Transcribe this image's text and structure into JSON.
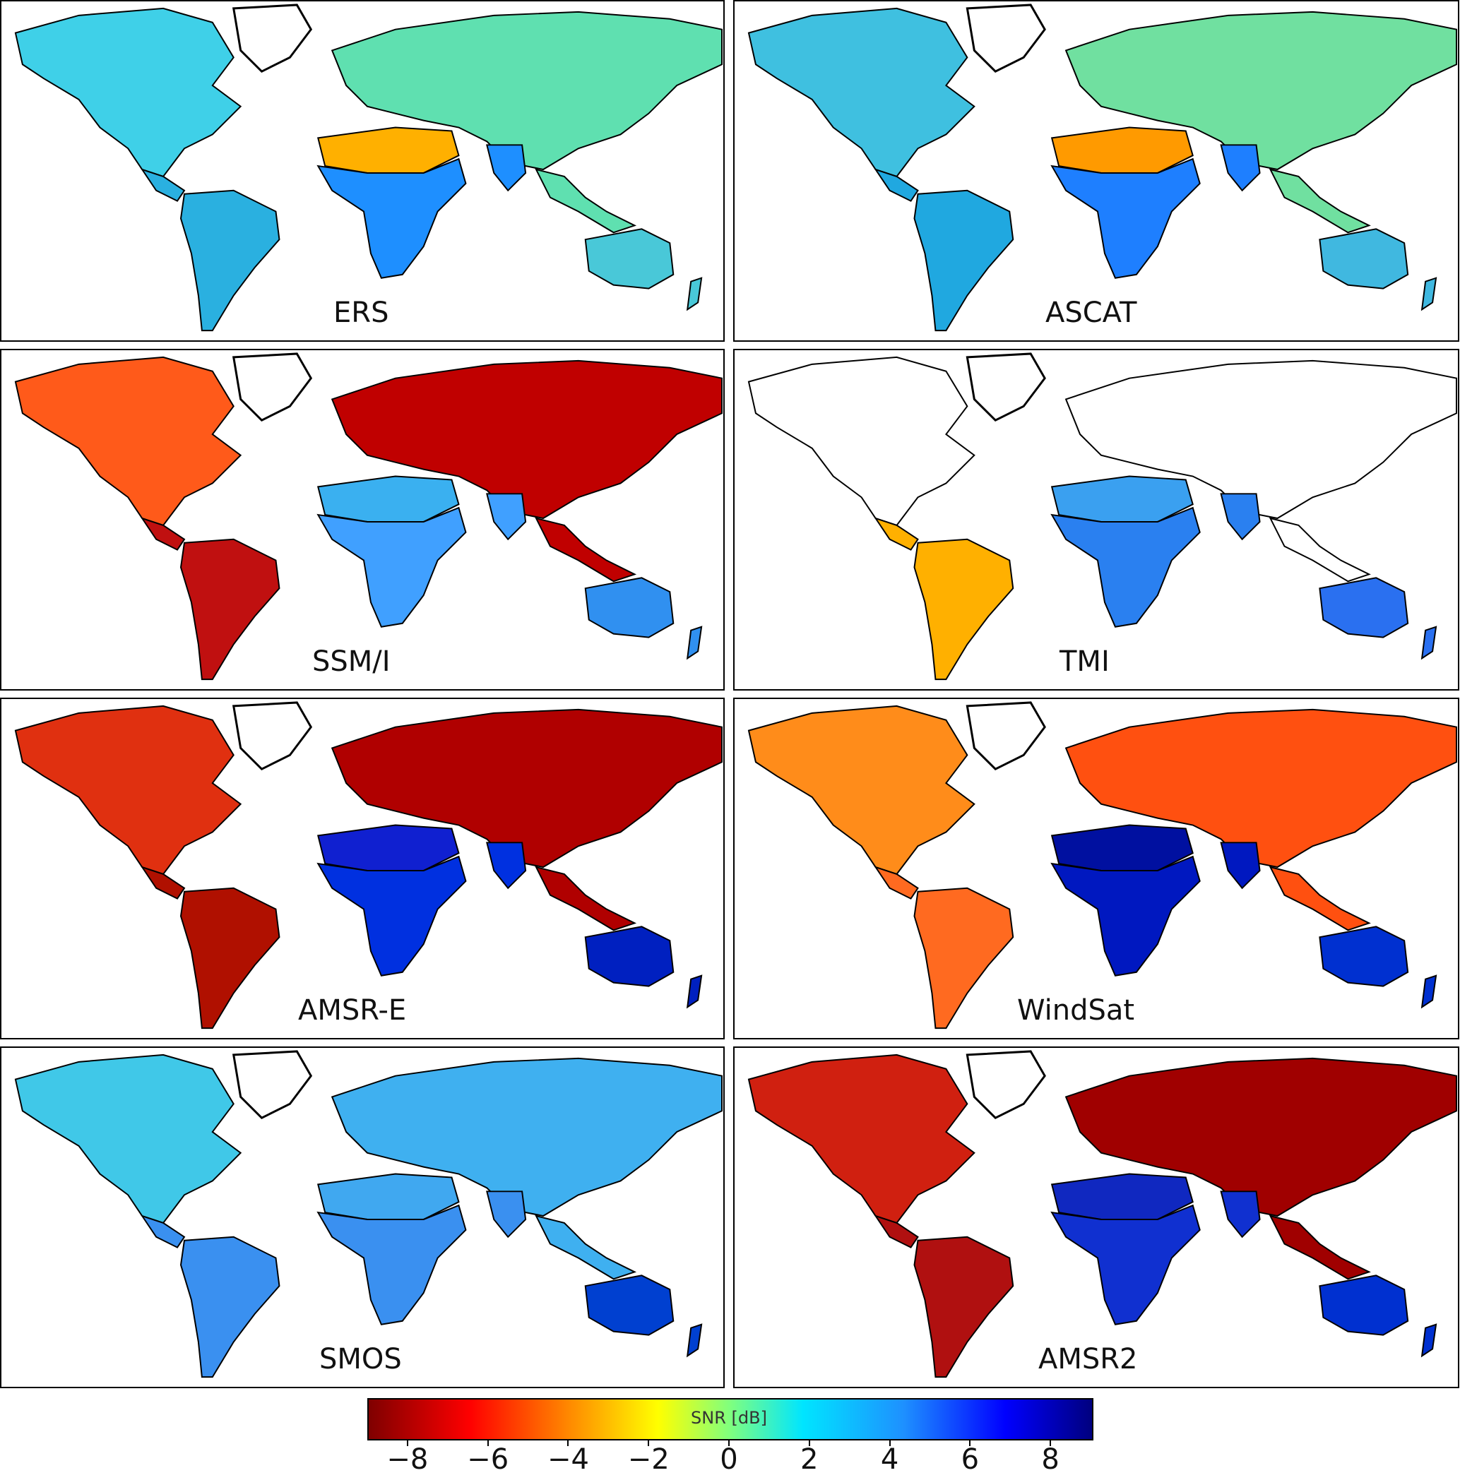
{
  "panels": [
    {
      "label": "ERS"
    },
    {
      "label": "ASCAT"
    },
    {
      "label": "SSM/I"
    },
    {
      "label": "TMI"
    },
    {
      "label": "AMSR-E"
    },
    {
      "label": "WindSat"
    },
    {
      "label": "SMOS"
    },
    {
      "label": "AMSR2"
    }
  ],
  "colorbar": {
    "title": "SNR [dB]",
    "min": -9,
    "max": 9,
    "ticks": [
      "−8",
      "−6",
      "−4",
      "−2",
      "0",
      "2",
      "4",
      "6",
      "8"
    ],
    "tick_values": [
      -8,
      -6,
      -4,
      -2,
      0,
      2,
      4,
      6,
      8
    ],
    "colormap": [
      "#7f0000",
      "#ff0000",
      "#ff8c00",
      "#ffff00",
      "#7fff7f",
      "#00e5ff",
      "#1e90ff",
      "#0000ff",
      "#00007f"
    ]
  },
  "colors": {
    "ERS": {
      "north_america": "#3fd0e8",
      "eurasia": "#5fe0b0",
      "africa": "#1e8fff",
      "sahara": "#ffb000",
      "south_america": "#2ab0e0",
      "australia": "#49c8d8"
    },
    "ASCAT": {
      "north_america": "#3fc0e0",
      "eurasia": "#70e0a0",
      "africa": "#1e7fff",
      "sahara": "#ff9a00",
      "south_america": "#20a8e0",
      "australia": "#40b8e0"
    },
    "SSM/I": {
      "north_america": "#ff5a1a",
      "eurasia": "#c00000",
      "africa": "#40a0ff",
      "sahara": "#3ab0f0",
      "south_america": "#c01010",
      "australia": "#3090f0"
    },
    "TMI": {
      "north_america": "#ffffff",
      "eurasia": "#ffffff",
      "africa": "#2a80f0",
      "sahara": "#3aa0f0",
      "south_america": "#ffb000",
      "australia": "#2a70f0"
    },
    "AMSR-E": {
      "north_america": "#e03010",
      "eurasia": "#b00000",
      "africa": "#0030e0",
      "sahara": "#1020d0",
      "south_america": "#b01000",
      "australia": "#0020c0"
    },
    "WindSat": {
      "north_america": "#ff8c1a",
      "eurasia": "#ff5010",
      "africa": "#0018c0",
      "sahara": "#0010a0",
      "south_america": "#ff6a20",
      "australia": "#0030d0"
    },
    "SMOS": {
      "north_america": "#40c8e8",
      "eurasia": "#3fb0f0",
      "africa": "#3a90f0",
      "sahara": "#40a8f0",
      "south_america": "#3a90f0",
      "australia": "#0040d0"
    },
    "AMSR2": {
      "north_america": "#d02010",
      "eurasia": "#a00000",
      "africa": "#1030d0",
      "sahara": "#1028c0",
      "south_america": "#b01010",
      "australia": "#0030d0"
    }
  }
}
